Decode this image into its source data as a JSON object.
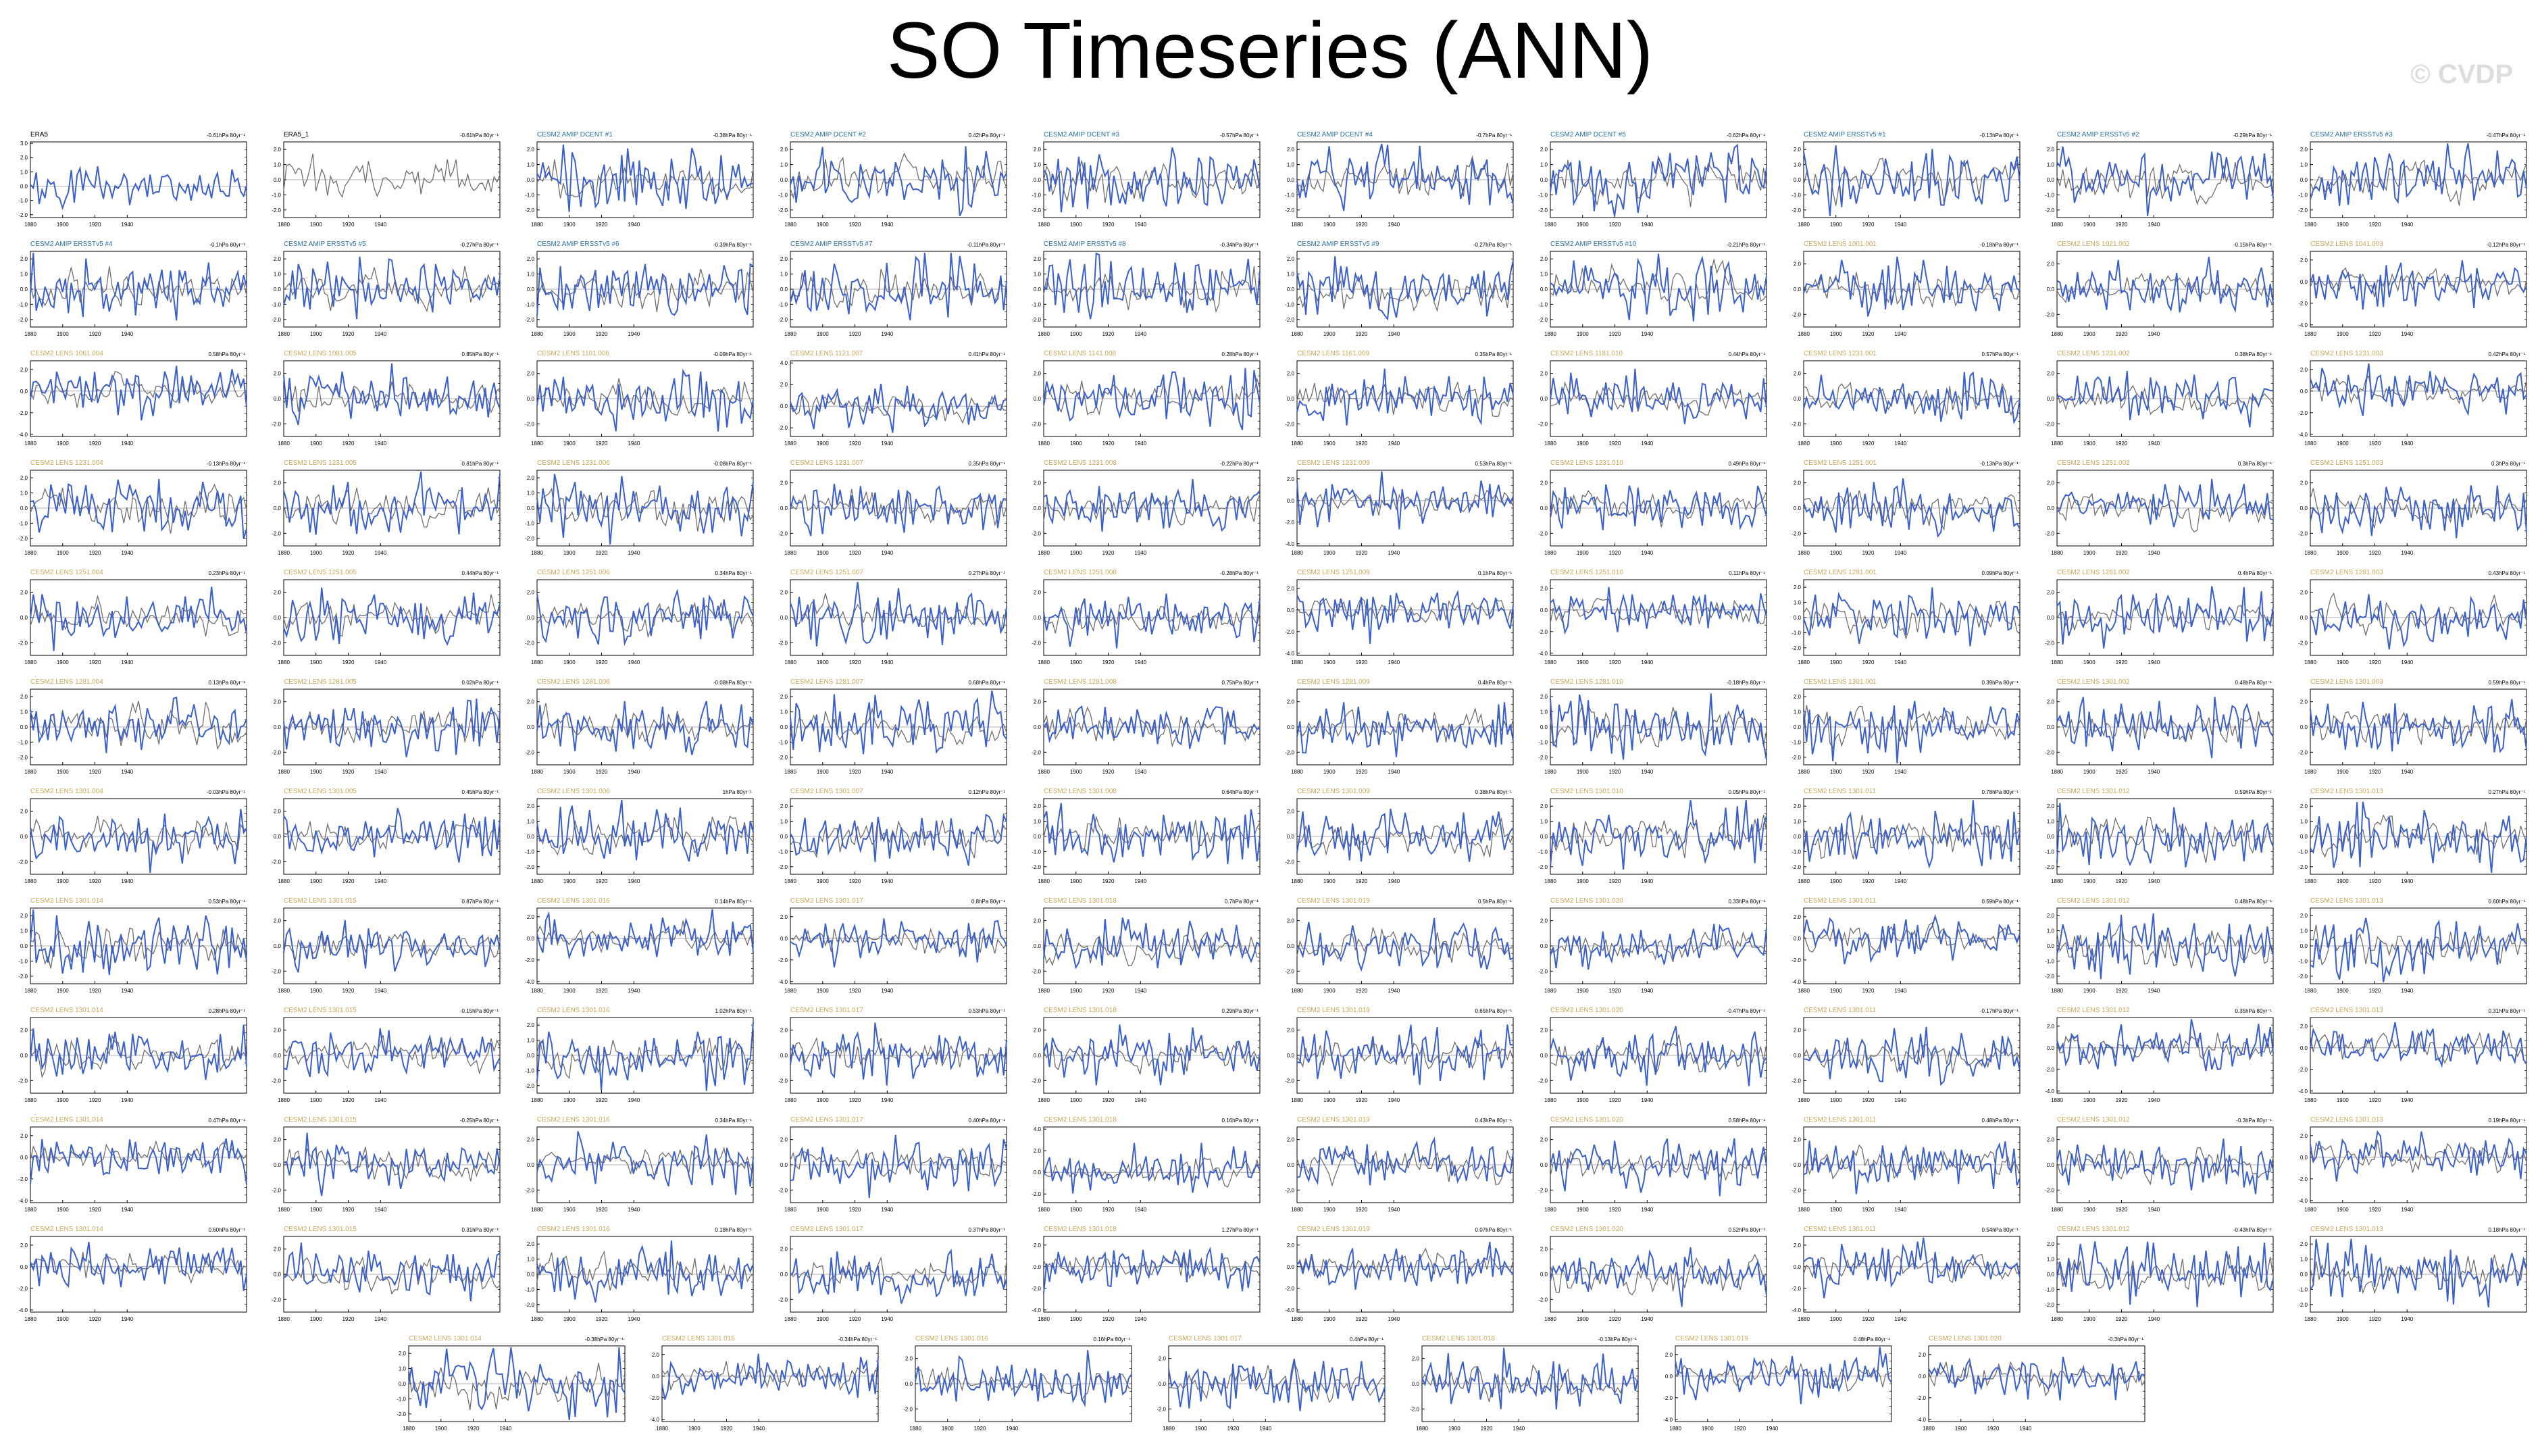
{
  "title": "SO Timeseries (ANN)",
  "watermark": "© CVDP",
  "colors": {
    "model_series": "#3a5fcd",
    "obs_series": "#6e6e6e",
    "obs_label": "#000000",
    "amip_label": "#2a6f9a",
    "lens_label": "#c8a85a",
    "frame": "#000000"
  },
  "chart_data": {
    "type": "line",
    "grid": {
      "rows": 11,
      "cols": 10,
      "extra_row_panels": 7
    },
    "xaxis": {
      "ticks": [
        1880,
        1900,
        1920,
        1940
      ],
      "range": [
        1880,
        2014
      ]
    },
    "yaxis_variants": {
      "a": {
        "ticks": [
          "3.0",
          "2.0",
          "1.0",
          "0.0",
          "-1.0",
          "-2.0"
        ],
        "range": [
          -2.2,
          3.1
        ]
      },
      "b": {
        "ticks": [
          "2.0",
          "1.0",
          "0.0",
          "-1.0",
          "-2.0"
        ],
        "range": [
          -2.5,
          2.5
        ]
      },
      "c": {
        "ticks": [
          "2.0",
          "0.0",
          "-2.0",
          "-4.0"
        ],
        "range": [
          -4.2,
          2.8
        ]
      },
      "d": {
        "ticks": [
          "4.0",
          "2.0",
          "0.0",
          "-2.0"
        ],
        "range": [
          -2.8,
          4.2
        ]
      },
      "e": {
        "ticks": [
          "2.0",
          "0.0",
          "-2.0"
        ],
        "range": [
          -3.0,
          3.0
        ]
      }
    },
    "panels": [
      {
        "label": "ERA5",
        "trend": "-0.61hPa 80yr⁻¹",
        "kind": "obs",
        "yv": "a"
      },
      {
        "label": "ERA5_1",
        "trend": "-0.61hPa 80yr⁻¹",
        "kind": "obs",
        "yv": "b"
      },
      {
        "label": "CESM2 AMIP DCENT #1",
        "trend": "-0.38hPa 80yr⁻¹",
        "kind": "amip",
        "yv": "b"
      },
      {
        "label": "CESM2 AMIP DCENT #2",
        "trend": "0.42hPa 80yr⁻¹",
        "kind": "amip",
        "yv": "b"
      },
      {
        "label": "CESM2 AMIP DCENT #3",
        "trend": "-0.57hPa 80yr⁻¹",
        "kind": "amip",
        "yv": "b"
      },
      {
        "label": "CESM2 AMIP DCENT #4",
        "trend": "-0.7hPa 80yr⁻¹",
        "kind": "amip",
        "yv": "b"
      },
      {
        "label": "CESM2 AMIP DCENT #5",
        "trend": "-0.62hPa 80yr⁻¹",
        "kind": "amip",
        "yv": "b"
      },
      {
        "label": "CESM2 AMIP ERSSTv5 #1",
        "trend": "-0.13hPa 80yr⁻¹",
        "kind": "amip",
        "yv": "b"
      },
      {
        "label": "CESM2 AMIP ERSSTv5 #2",
        "trend": "-0.29hPa 80yr⁻¹",
        "kind": "amip",
        "yv": "b"
      },
      {
        "label": "CESM2 AMIP ERSSTv5 #3",
        "trend": "-0.47hPa 80yr⁻¹",
        "kind": "amip",
        "yv": "b"
      },
      {
        "label": "CESM2 AMIP ERSSTv5 #4",
        "trend": "-0.1hPa 80yr⁻¹",
        "kind": "amip",
        "yv": "b"
      },
      {
        "label": "CESM2 AMIP ERSSTv5 #5",
        "trend": "-0.27hPa 80yr⁻¹",
        "kind": "amip",
        "yv": "b"
      },
      {
        "label": "CESM2 AMIP ERSSTv5 #6",
        "trend": "-0.39hPa 80yr⁻¹",
        "kind": "amip",
        "yv": "b"
      },
      {
        "label": "CESM2 AMIP ERSSTv5 #7",
        "trend": "-0.11hPa 80yr⁻¹",
        "kind": "amip",
        "yv": "b"
      },
      {
        "label": "CESM2 AMIP ERSSTv5 #8",
        "trend": "-0.34hPa 80yr⁻¹",
        "kind": "amip",
        "yv": "b"
      },
      {
        "label": "CESM2 AMIP ERSSTv5 #9",
        "trend": "-0.27hPa 80yr⁻¹",
        "kind": "amip",
        "yv": "b"
      },
      {
        "label": "CESM2 AMIP ERSSTv5 #10",
        "trend": "-0.21hPa 80yr⁻¹",
        "kind": "amip",
        "yv": "b"
      },
      {
        "label": "CESM2 LENS 1001.001",
        "trend": "-0.18hPa 80yr⁻¹",
        "kind": "lens",
        "yv": "e"
      },
      {
        "label": "CESM2 LENS 1021.002",
        "trend": "-0.15hPa 80yr⁻¹",
        "kind": "lens",
        "yv": "e"
      },
      {
        "label": "CESM2 LENS 1041.003",
        "trend": "-0.12hPa 80yr⁻¹",
        "kind": "lens",
        "yv": "c"
      },
      {
        "label": "CESM2 LENS 1061.004",
        "trend": "0.58hPa 80yr⁻¹",
        "kind": "lens",
        "yv": "c"
      },
      {
        "label": "CESM2 LENS 1081.005",
        "trend": "0.85hPa 80yr⁻¹",
        "kind": "lens",
        "yv": "e"
      },
      {
        "label": "CESM2 LENS 1101.006",
        "trend": "-0.09hPa 80yr⁻¹",
        "kind": "lens",
        "yv": "e"
      },
      {
        "label": "CESM2 LENS 1121.007",
        "trend": "0.41hPa 80yr⁻¹",
        "kind": "lens",
        "yv": "d"
      },
      {
        "label": "CESM2 LENS 1141.008",
        "trend": "0.28hPa 80yr⁻¹",
        "kind": "lens",
        "yv": "e"
      },
      {
        "label": "CESM2 LENS 1161.009",
        "trend": "0.35hPa 80yr⁻¹",
        "kind": "lens",
        "yv": "e"
      },
      {
        "label": "CESM2 LENS 1181.010",
        "trend": "0.44hPa 80yr⁻¹",
        "kind": "lens",
        "yv": "e"
      },
      {
        "label": "CESM2 LENS 1231.001",
        "trend": "0.57hPa 80yr⁻¹",
        "kind": "lens",
        "yv": "e"
      },
      {
        "label": "CESM2 LENS 1231.002",
        "trend": "0.38hPa 80yr⁻¹",
        "kind": "lens",
        "yv": "e"
      },
      {
        "label": "CESM2 LENS 1231.003",
        "trend": "0.42hPa 80yr⁻¹",
        "kind": "lens",
        "yv": "c"
      },
      {
        "label": "CESM2 LENS 1231.004",
        "trend": "-0.13hPa 80yr⁻¹",
        "kind": "lens",
        "yv": "b"
      },
      {
        "label": "CESM2 LENS 1231.005",
        "trend": "0.81hPa 80yr⁻¹",
        "kind": "lens",
        "yv": "e"
      },
      {
        "label": "CESM2 LENS 1231.006",
        "trend": "-0.08hPa 80yr⁻¹",
        "kind": "lens",
        "yv": "b"
      },
      {
        "label": "CESM2 LENS 1231.007",
        "trend": "0.35hPa 80yr⁻¹",
        "kind": "lens",
        "yv": "e"
      },
      {
        "label": "CESM2 LENS 1231.008",
        "trend": "-0.22hPa 80yr⁻¹",
        "kind": "lens",
        "yv": "e"
      },
      {
        "label": "CESM2 LENS 1231.009",
        "trend": "0.53hPa 80yr⁻¹",
        "kind": "lens",
        "yv": "c"
      },
      {
        "label": "CESM2 LENS 1231.010",
        "trend": "0.49hPa 80yr⁻¹",
        "kind": "lens",
        "yv": "e"
      },
      {
        "label": "CESM2 LENS 1251.001",
        "trend": "-0.13hPa 80yr⁻¹",
        "kind": "lens",
        "yv": "e"
      },
      {
        "label": "CESM2 LENS 1251.002",
        "trend": "0.3hPa 80yr⁻¹",
        "kind": "lens",
        "yv": "e"
      },
      {
        "label": "CESM2 LENS 1251.003",
        "trend": "0.3hPa 80yr⁻¹",
        "kind": "lens",
        "yv": "e"
      },
      {
        "label": "CESM2 LENS 1251.004",
        "trend": "0.23hPa 80yr⁻¹",
        "kind": "lens",
        "yv": "e"
      },
      {
        "label": "CESM2 LENS 1251.005",
        "trend": "0.44hPa 80yr⁻¹",
        "kind": "lens",
        "yv": "e"
      },
      {
        "label": "CESM2 LENS 1251.006",
        "trend": "0.34hPa 80yr⁻¹",
        "kind": "lens",
        "yv": "e"
      },
      {
        "label": "CESM2 LENS 1251.007",
        "trend": "0.27hPa 80yr⁻¹",
        "kind": "lens",
        "yv": "e"
      },
      {
        "label": "CESM2 LENS 1251.008",
        "trend": "-0.28hPa 80yr⁻¹",
        "kind": "lens",
        "yv": "e"
      },
      {
        "label": "CESM2 LENS 1251.009",
        "trend": "0.1hPa 80yr⁻¹",
        "kind": "lens",
        "yv": "c"
      },
      {
        "label": "CESM2 LENS 1251.010",
        "trend": "0.11hPa 80yr⁻¹",
        "kind": "lens",
        "yv": "c"
      },
      {
        "label": "CESM2 LENS 1281.001",
        "trend": "0.09hPa 80yr⁻¹",
        "kind": "lens",
        "yv": "b"
      },
      {
        "label": "CESM2 LENS 1281.002",
        "trend": "0.4hPa 80yr⁻¹",
        "kind": "lens",
        "yv": "e"
      },
      {
        "label": "CESM2 LENS 1281.003",
        "trend": "0.43hPa 80yr⁻¹",
        "kind": "lens",
        "yv": "e"
      },
      {
        "label": "CESM2 LENS 1281.004",
        "trend": "0.13hPa 80yr⁻¹",
        "kind": "lens",
        "yv": "b"
      },
      {
        "label": "CESM2 LENS 1281.005",
        "trend": "0.02hPa 80yr⁻¹",
        "kind": "lens",
        "yv": "e"
      },
      {
        "label": "CESM2 LENS 1281.006",
        "trend": "-0.08hPa 80yr⁻¹",
        "kind": "lens",
        "yv": "e"
      },
      {
        "label": "CESM2 LENS 1281.007",
        "trend": "0.68hPa 80yr⁻¹",
        "kind": "lens",
        "yv": "b"
      },
      {
        "label": "CESM2 LENS 1281.008",
        "trend": "0.75hPa 80yr⁻¹",
        "kind": "lens",
        "yv": "e"
      },
      {
        "label": "CESM2 LENS 1281.009",
        "trend": "0.4hPa 80yr⁻¹",
        "kind": "lens",
        "yv": "e"
      },
      {
        "label": "CESM2 LENS 1281.010",
        "trend": "-0.18hPa 80yr⁻¹",
        "kind": "lens",
        "yv": "b"
      },
      {
        "label": "CESM2 LENS 1301.001",
        "trend": "0.39hPa 80yr⁻¹",
        "kind": "lens",
        "yv": "b"
      },
      {
        "label": "CESM2 LENS 1301.002",
        "trend": "0.48hPa 80yr⁻¹",
        "kind": "lens",
        "yv": "e"
      },
      {
        "label": "CESM2 LENS 1301.003",
        "trend": "0.59hPa 80yr⁻¹",
        "kind": "lens",
        "yv": "e"
      },
      {
        "label": "CESM2 LENS 1301.004",
        "trend": "-0.03hPa 80yr⁻¹",
        "kind": "lens",
        "yv": "e"
      },
      {
        "label": "CESM2 LENS 1301.005",
        "trend": "0.45hPa 80yr⁻¹",
        "kind": "lens",
        "yv": "e"
      },
      {
        "label": "CESM2 LENS 1301.006",
        "trend": "1hPa 80yr⁻¹",
        "kind": "lens",
        "yv": "b"
      },
      {
        "label": "CESM2 LENS 1301.007",
        "trend": "0.12hPa 80yr⁻¹",
        "kind": "lens",
        "yv": "b"
      },
      {
        "label": "CESM2 LENS 1301.008",
        "trend": "0.64hPa 80yr⁻¹",
        "kind": "lens",
        "yv": "b"
      },
      {
        "label": "CESM2 LENS 1301.009",
        "trend": "0.38hPa 80yr⁻¹",
        "kind": "lens",
        "yv": "e"
      },
      {
        "label": "CESM2 LENS 1301.010",
        "trend": "0.05hPa 80yr⁻¹",
        "kind": "lens",
        "yv": "b"
      },
      {
        "label": "CESM2 LENS 1301.011",
        "trend": "0.78hPa 80yr⁻¹",
        "kind": "lens",
        "yv": "b"
      },
      {
        "label": "CESM2 LENS 1301.012",
        "trend": "0.59hPa 80yr⁻¹",
        "kind": "lens",
        "yv": "b"
      },
      {
        "label": "CESM2 LENS 1301.013",
        "trend": "0.27hPa 80yr⁻¹",
        "kind": "lens",
        "yv": "b"
      },
      {
        "label": "CESM2 LENS 1301.014",
        "trend": "0.53hPa 80yr⁻¹",
        "kind": "lens",
        "yv": "b"
      },
      {
        "label": "CESM2 LENS 1301.015",
        "trend": "0.87hPa 80yr⁻¹",
        "kind": "lens",
        "yv": "e"
      },
      {
        "label": "CESM2 LENS 1301.016",
        "trend": "0.14hPa 80yr⁻¹",
        "kind": "lens",
        "yv": "c"
      },
      {
        "label": "CESM2 LENS 1301.017",
        "trend": "0.8hPa 80yr⁻¹",
        "kind": "lens",
        "yv": "c"
      },
      {
        "label": "CESM2 LENS 1301.018",
        "trend": "0.7hPa 80yr⁻¹",
        "kind": "lens",
        "yv": "e"
      },
      {
        "label": "CESM2 LENS 1301.019",
        "trend": "0.5hPa 80yr⁻¹",
        "kind": "lens",
        "yv": "e"
      },
      {
        "label": "CESM2 LENS 1301.020",
        "trend": "0.33hPa 80yr⁻¹",
        "kind": "lens",
        "yv": "e"
      },
      {
        "label": "CESM2 LENS 1301.011",
        "trend": "0.59hPa 80yr⁻¹",
        "kind": "lens",
        "yv": "c"
      },
      {
        "label": "CESM2 LENS 1301.012",
        "trend": "0.48hPa 80yr⁻¹",
        "kind": "lens",
        "yv": "b"
      },
      {
        "label": "CESM2 LENS 1301.013",
        "trend": "0.60hPa 80yr⁻¹",
        "kind": "lens",
        "yv": "b"
      },
      {
        "label": "CESM2 LENS 1301.014",
        "trend": "0.28hPa 80yr⁻¹",
        "kind": "lens",
        "yv": "e"
      },
      {
        "label": "CESM2 LENS 1301.015",
        "trend": "-0.15hPa 80yr⁻¹",
        "kind": "lens",
        "yv": "e"
      },
      {
        "label": "CESM2 LENS 1301.016",
        "trend": "1.02hPa 80yr⁻¹",
        "kind": "lens",
        "yv": "b"
      },
      {
        "label": "CESM2 LENS 1301.017",
        "trend": "0.53hPa 80yr⁻¹",
        "kind": "lens",
        "yv": "e"
      },
      {
        "label": "CESM2 LENS 1301.018",
        "trend": "0.29hPa 80yr⁻¹",
        "kind": "lens",
        "yv": "e"
      },
      {
        "label": "CESM2 LENS 1301.019",
        "trend": "0.65hPa 80yr⁻¹",
        "kind": "lens",
        "yv": "e"
      },
      {
        "label": "CESM2 LENS 1301.020",
        "trend": "-0.47hPa 80yr⁻¹",
        "kind": "lens",
        "yv": "e"
      },
      {
        "label": "CESM2 LENS 1301.011",
        "trend": "-0.17hPa 80yr⁻¹",
        "kind": "lens",
        "yv": "e"
      },
      {
        "label": "CESM2 LENS 1301.012",
        "trend": "0.35hPa 80yr⁻¹",
        "kind": "lens",
        "yv": "c"
      },
      {
        "label": "CESM2 LENS 1301.013",
        "trend": "0.31hPa 80yr⁻¹",
        "kind": "lens",
        "yv": "c"
      },
      {
        "label": "CESM2 LENS 1301.014",
        "trend": "0.47hPa 80yr⁻¹",
        "kind": "lens",
        "yv": "c"
      },
      {
        "label": "CESM2 LENS 1301.015",
        "trend": "-0.25hPa 80yr⁻¹",
        "kind": "lens",
        "yv": "e"
      },
      {
        "label": "CESM2 LENS 1301.016",
        "trend": "0.34hPa 80yr⁻¹",
        "kind": "lens",
        "yv": "e"
      },
      {
        "label": "CESM2 LENS 1301.017",
        "trend": "0.40hPa 80yr⁻¹",
        "kind": "lens",
        "yv": "e"
      },
      {
        "label": "CESM2 LENS 1301.018",
        "trend": "0.16hPa 80yr⁻¹",
        "kind": "lens",
        "yv": "d"
      },
      {
        "label": "CESM2 LENS 1301.019",
        "trend": "0.43hPa 80yr⁻¹",
        "kind": "lens",
        "yv": "e"
      },
      {
        "label": "CESM2 LENS 1301.020",
        "trend": "0.58hPa 80yr⁻¹",
        "kind": "lens",
        "yv": "e"
      },
      {
        "label": "CESM2 LENS 1301.011",
        "trend": "0.48hPa 80yr⁻¹",
        "kind": "lens",
        "yv": "e"
      },
      {
        "label": "CESM2 LENS 1301.012",
        "trend": "-0.3hPa 80yr⁻¹",
        "kind": "lens",
        "yv": "e"
      },
      {
        "label": "CESM2 LENS 1301.013",
        "trend": "0.19hPa 80yr⁻¹",
        "kind": "lens",
        "yv": "c"
      },
      {
        "label": "CESM2 LENS 1301.014",
        "trend": "0.60hPa 80yr⁻¹",
        "kind": "lens",
        "yv": "c"
      },
      {
        "label": "CESM2 LENS 1301.015",
        "trend": "0.31hPa 80yr⁻¹",
        "kind": "lens",
        "yv": "e"
      },
      {
        "label": "CESM2 LENS 1301.016",
        "trend": "0.18hPa 80yr⁻¹",
        "kind": "lens",
        "yv": "b"
      },
      {
        "label": "CESM2 LENS 1301.017",
        "trend": "0.37hPa 80yr⁻¹",
        "kind": "lens",
        "yv": "e"
      },
      {
        "label": "CESM2 LENS 1301.018",
        "trend": "1.27hPa 80yr⁻¹",
        "kind": "lens",
        "yv": "c"
      },
      {
        "label": "CESM2 LENS 1301.019",
        "trend": "0.07hPa 80yr⁻¹",
        "kind": "lens",
        "yv": "c"
      },
      {
        "label": "CESM2 LENS 1301.020",
        "trend": "0.52hPa 80yr⁻¹",
        "kind": "lens",
        "yv": "e"
      },
      {
        "label": "CESM2 LENS 1301.011",
        "trend": "0.54hPa 80yr⁻¹",
        "kind": "lens",
        "yv": "c"
      },
      {
        "label": "CESM2 LENS 1301.012",
        "trend": "-0.43hPa 80yr⁻¹",
        "kind": "lens",
        "yv": "b"
      },
      {
        "label": "CESM2 LENS 1301.013",
        "trend": "0.18hPa 80yr⁻¹",
        "kind": "lens",
        "yv": "b"
      },
      {
        "label": "CESM2 LENS 1301.014",
        "trend": "-0.38hPa 80yr⁻¹",
        "kind": "lens",
        "yv": "b"
      },
      {
        "label": "CESM2 LENS 1301.015",
        "trend": "-0.34hPa 80yr⁻¹",
        "kind": "lens",
        "yv": "c"
      },
      {
        "label": "CESM2 LENS 1301.016",
        "trend": "0.16hPa 80yr⁻¹",
        "kind": "lens",
        "yv": "e"
      },
      {
        "label": "CESM2 LENS 1301.017",
        "trend": "0.4hPa 80yr⁻¹",
        "kind": "lens",
        "yv": "e"
      },
      {
        "label": "CESM2 LENS 1301.018",
        "trend": "-0.13hPa 80yr⁻¹",
        "kind": "lens",
        "yv": "e"
      },
      {
        "label": "CESM2 LENS 1301.019",
        "trend": "0.48hPa 80yr⁻¹",
        "kind": "lens",
        "yv": "c"
      },
      {
        "label": "CESM2 LENS 1301.020",
        "trend": "-0.3hPa 80yr⁻¹",
        "kind": "lens",
        "yv": "c"
      }
    ]
  }
}
